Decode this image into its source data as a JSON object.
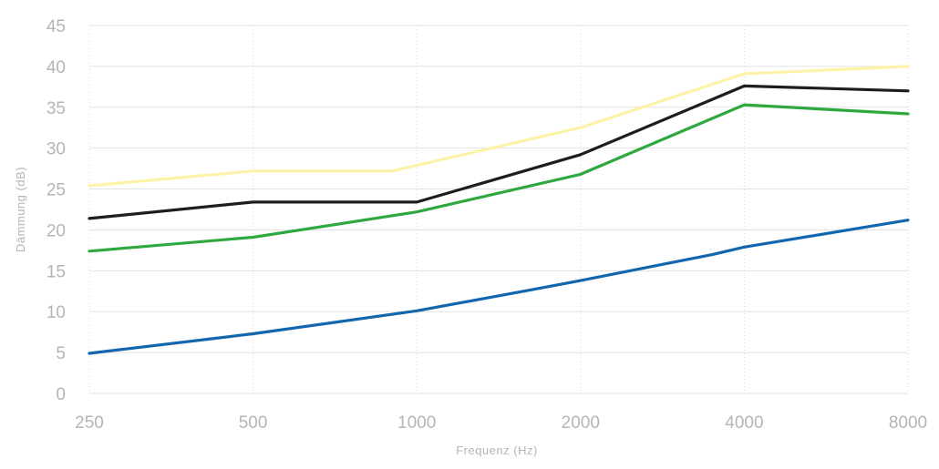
{
  "chart_data": {
    "type": "line",
    "title": "",
    "xlabel": "Frequenz (Hz)",
    "ylabel": "Dämmung (dB)",
    "x": [
      "250",
      "500",
      "1000",
      "2000",
      "4000",
      "8000"
    ],
    "ylim": [
      0,
      45
    ],
    "yticks": [
      "0",
      "5",
      "10",
      "15",
      "20",
      "25",
      "30",
      "35",
      "40",
      "45"
    ],
    "grid": true,
    "legend": "none",
    "series": [
      {
        "color": "#fdf3a8",
        "points": [
          [
            250,
            25.4
          ],
          [
            500,
            27.2
          ],
          [
            900,
            27.2
          ],
          [
            2000,
            32.5
          ],
          [
            4000,
            39.1
          ],
          [
            8000,
            40.0
          ]
        ]
      },
      {
        "color": "#1d1d1b",
        "points": [
          [
            250,
            21.4
          ],
          [
            500,
            23.4
          ],
          [
            1000,
            23.4
          ],
          [
            2000,
            29.2
          ],
          [
            4000,
            37.6
          ],
          [
            8000,
            37.0
          ]
        ]
      },
      {
        "color": "#2ea83f",
        "points": [
          [
            250,
            17.4
          ],
          [
            500,
            19.1
          ],
          [
            1000,
            22.2
          ],
          [
            2000,
            26.8
          ],
          [
            4000,
            35.3
          ],
          [
            8000,
            34.2
          ]
        ]
      },
      {
        "color": "#1266ad",
        "points": [
          [
            250,
            4.9
          ],
          [
            500,
            7.3
          ],
          [
            1000,
            10.1
          ],
          [
            1600,
            12.6
          ],
          [
            2000,
            13.8
          ],
          [
            3500,
            17.0
          ],
          [
            4000,
            17.9
          ],
          [
            8000,
            21.2
          ]
        ]
      }
    ]
  }
}
